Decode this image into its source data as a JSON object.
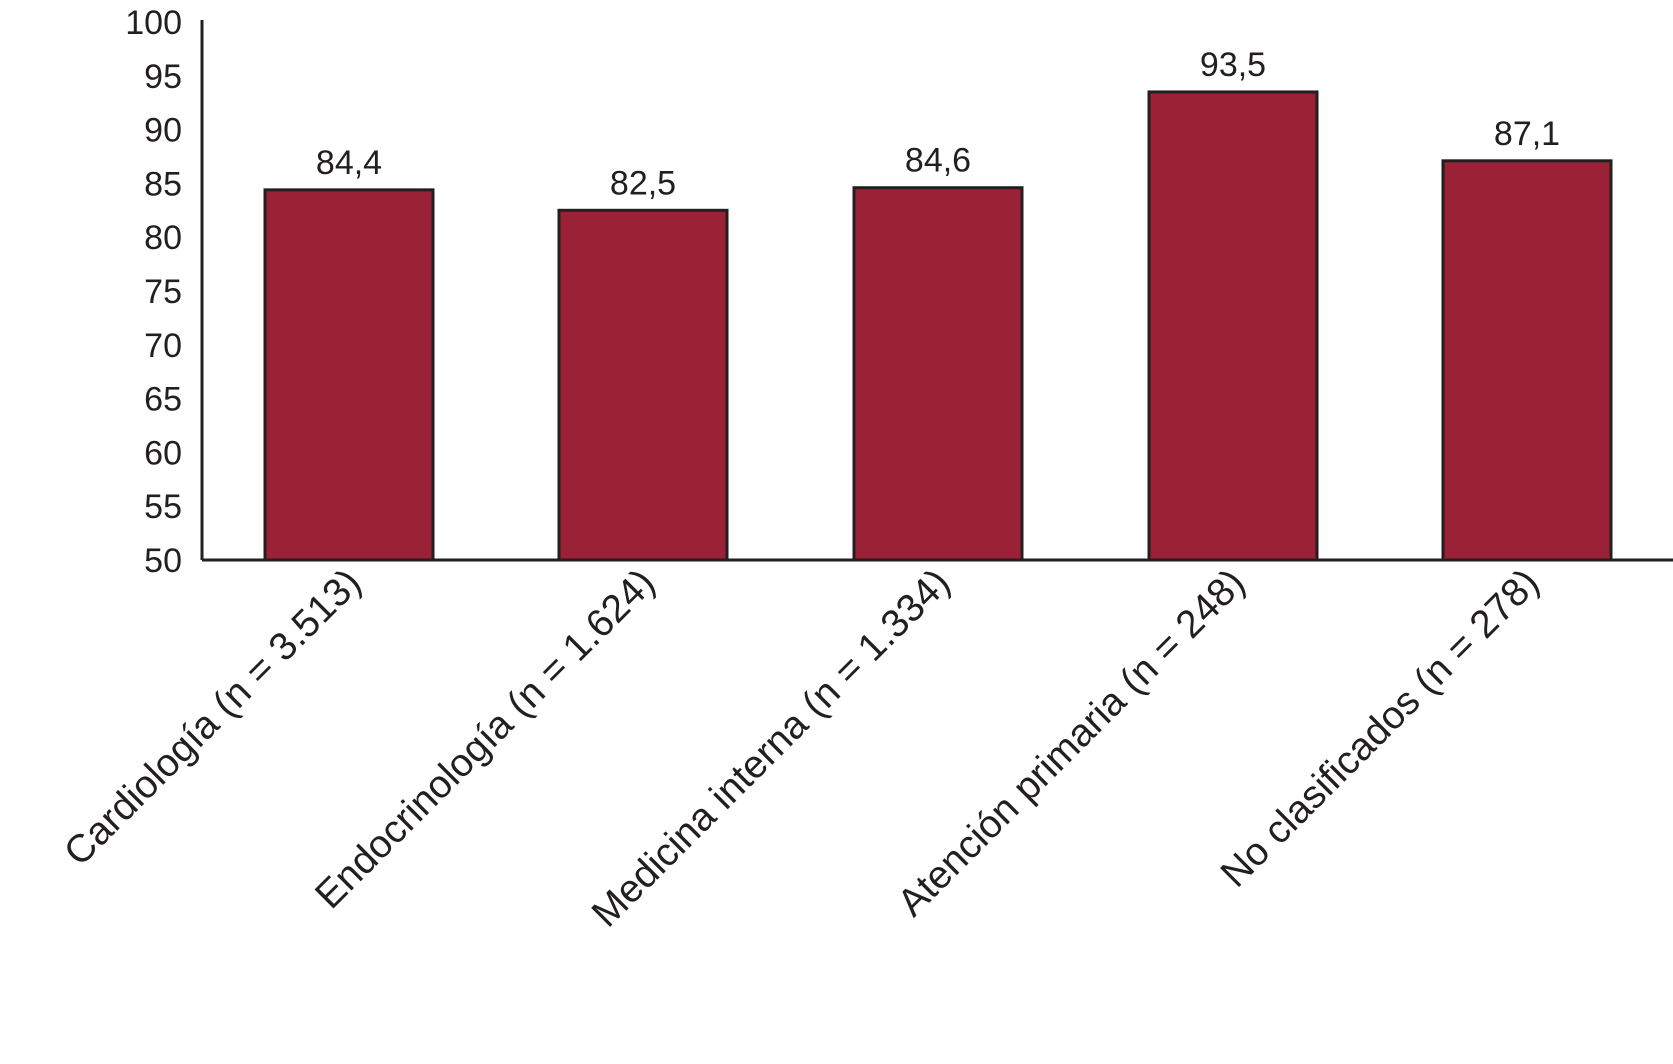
{
  "chart_data": {
    "type": "bar",
    "title": "",
    "xlabel": "",
    "ylabel": "",
    "ylim": [
      50,
      100
    ],
    "yticks": [
      50,
      55,
      60,
      65,
      70,
      75,
      80,
      85,
      90,
      95,
      100
    ],
    "categories": [
      "Cardiología (n = 3.513)",
      "Endocrinología (n = 1.624)",
      "Medicina interna (n = 1.334)",
      "Atención primaria (n = 248)",
      "No clasificados (n = 278)"
    ],
    "values": [
      84.4,
      82.5,
      84.6,
      93.5,
      87.1
    ],
    "value_labels": [
      "84,4",
      "82,5",
      "84,6",
      "93,5",
      "87,1"
    ],
    "bar_color": "#9b2137",
    "axis_color": "#231f20",
    "grid": false,
    "legend": "none"
  }
}
